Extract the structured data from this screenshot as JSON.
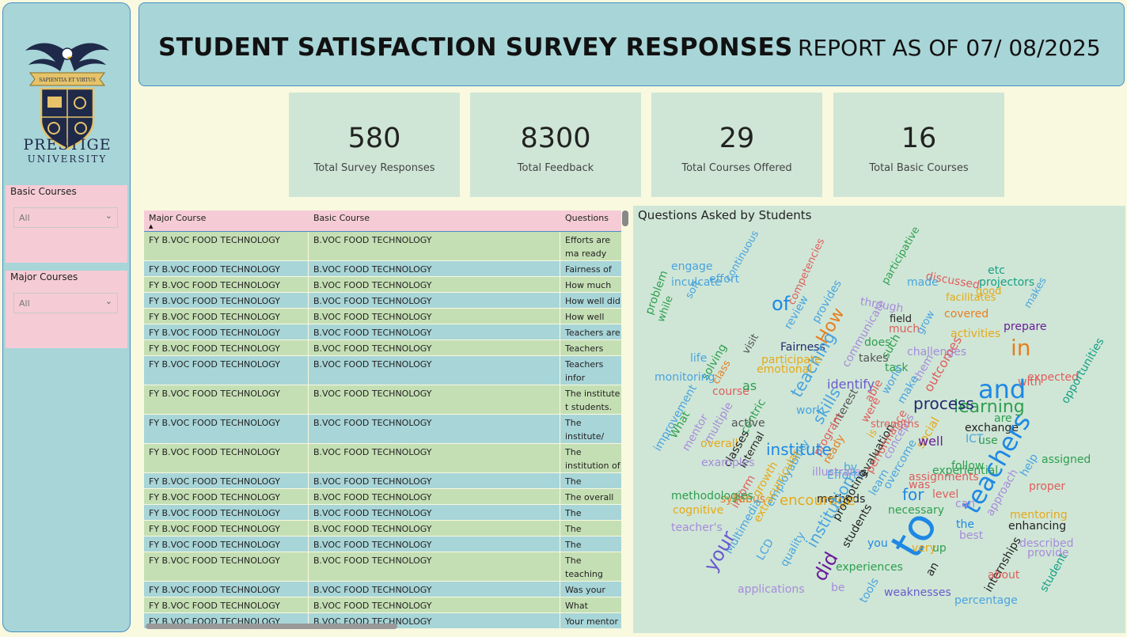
{
  "sidebar": {
    "brand_line1": "PRESTIGE",
    "brand_line2": "UNIVERSITY",
    "logo_motto": "SAPIENTIA ET VIRTUS",
    "slicers": [
      {
        "title": "Basic Courses",
        "value": "All"
      },
      {
        "title": "Major Courses",
        "value": "All"
      }
    ]
  },
  "header": {
    "title": "STUDENT SATISFACTION SURVEY RESPONSES",
    "report": "REPORT AS OF 07/ 08/2025"
  },
  "kpis": [
    {
      "value": "580",
      "label": "Total Survey Responses"
    },
    {
      "value": "8300",
      "label": "Total Feedback"
    },
    {
      "value": "29",
      "label": "Total Courses Offered"
    },
    {
      "value": "16",
      "label": "Total Basic Courses"
    }
  ],
  "table": {
    "columns": [
      "Major Course",
      "Basic Course",
      "Questions"
    ],
    "rows": [
      {
        "major": "FY B.VOC FOOD TECHNOLOGY",
        "basic": "B.VOC FOOD TECHNOLOGY",
        "question": "Efforts are ma ready for the"
      },
      {
        "major": "FY B.VOC FOOD TECHNOLOGY",
        "basic": "B.VOC FOOD TECHNOLOGY",
        "question": "Fairness of the"
      },
      {
        "major": "FY B.VOC FOOD TECHNOLOGY",
        "basic": "B.VOC FOOD TECHNOLOGY",
        "question": "How much of"
      },
      {
        "major": "FY B.VOC FOOD TECHNOLOGY",
        "basic": "B.VOC FOOD TECHNOLOGY",
        "question": "How well did"
      },
      {
        "major": "FY B.VOC FOOD TECHNOLOGY",
        "basic": "B.VOC FOOD TECHNOLOGY",
        "question": "How well were"
      },
      {
        "major": "FY B.VOC FOOD TECHNOLOGY",
        "basic": "B.VOC FOOD TECHNOLOGY",
        "question": "Teachers are a"
      },
      {
        "major": "FY B.VOC FOOD TECHNOLOGY",
        "basic": "B.VOC FOOD TECHNOLOGY",
        "question": "Teachers enco"
      },
      {
        "major": "FY B.VOC FOOD TECHNOLOGY",
        "basic": "B.VOC FOOD TECHNOLOGY",
        "question": "Teachers infor outcomes."
      },
      {
        "major": "FY B.VOC FOOD TECHNOLOGY",
        "basic": "B.VOC FOOD TECHNOLOGY",
        "question": "The institute t students."
      },
      {
        "major": "FY B.VOC FOOD TECHNOLOGY",
        "basic": "B.VOC FOOD TECHNOLOGY",
        "question": "The institute/ problem-solvi"
      },
      {
        "major": "FY B.VOC FOOD TECHNOLOGY",
        "basic": "B.VOC FOOD TECHNOLOGY",
        "question": "The institution of the teachin"
      },
      {
        "major": "FY B.VOC FOOD TECHNOLOGY",
        "basic": "B.VOC FOOD TECHNOLOGY",
        "question": "The institution"
      },
      {
        "major": "FY B.VOC FOOD TECHNOLOGY",
        "basic": "B.VOC FOOD TECHNOLOGY",
        "question": "The overall qu"
      },
      {
        "major": "FY B.VOC FOOD TECHNOLOGY",
        "basic": "B.VOC FOOD TECHNOLOGY",
        "question": "The teacher's"
      },
      {
        "major": "FY B.VOC FOOD TECHNOLOGY",
        "basic": "B.VOC FOOD TECHNOLOGY",
        "question": "The teachers i"
      },
      {
        "major": "FY B.VOC FOOD TECHNOLOGY",
        "basic": "B.VOC FOOD TECHNOLOGY",
        "question": "The teachers i"
      },
      {
        "major": "FY B.VOC FOOD TECHNOLOGY",
        "basic": "B.VOC FOOD TECHNOLOGY",
        "question": "The teaching emotional gro"
      },
      {
        "major": "FY B.VOC FOOD TECHNOLOGY",
        "basic": "B.VOC FOOD TECHNOLOGY",
        "question": "Was your pert"
      },
      {
        "major": "FY B.VOC FOOD TECHNOLOGY",
        "basic": "B.VOC FOOD TECHNOLOGY",
        "question": "What percent"
      },
      {
        "major": "FY B.VOC FOOD TECHNOLOGY",
        "basic": "B.VOC FOOD TECHNOLOGY",
        "question": "Your mentor c"
      }
    ]
  },
  "wordcloud": {
    "title": "Questions Asked by Students",
    "words": [
      {
        "t": "engage",
        "c": "#4aa3df"
      },
      {
        "t": "effort",
        "c": "#4aa3df"
      },
      {
        "t": "continuous",
        "c": "#4aa3df"
      },
      {
        "t": "inculcate",
        "c": "#4aa3df"
      },
      {
        "t": "problem",
        "c": "#2e9e4f"
      },
      {
        "t": "soft",
        "c": "#4aa3df"
      },
      {
        "t": "while",
        "c": "#2e9e4f"
      },
      {
        "t": "of",
        "c": "#1e88e5"
      },
      {
        "t": "review",
        "c": "#4aa3df"
      },
      {
        "t": "competencies",
        "c": "#e05c5c"
      },
      {
        "t": "provides",
        "c": "#4aa3df"
      },
      {
        "t": "How",
        "c": "#e67e22"
      },
      {
        "t": "through",
        "c": "#a78bda"
      },
      {
        "t": "participative",
        "c": "#2e9e4f"
      },
      {
        "t": "discussed",
        "c": "#e05c5c"
      },
      {
        "t": "made",
        "c": "#4aa3df"
      },
      {
        "t": "etc",
        "c": "#16a085"
      },
      {
        "t": "projectors",
        "c": "#16a085"
      },
      {
        "t": "good",
        "c": "#e6a817"
      },
      {
        "t": "facilitates",
        "c": "#e6a817"
      },
      {
        "t": "makes",
        "c": "#4aa3df"
      },
      {
        "t": "covered",
        "c": "#e67e22"
      },
      {
        "t": "prepare",
        "c": "#6a1b9a"
      },
      {
        "t": "activities",
        "c": "#e6a817"
      },
      {
        "t": "in",
        "c": "#e67e22"
      },
      {
        "t": "field",
        "c": "#222"
      },
      {
        "t": "much",
        "c": "#e05c5c"
      },
      {
        "t": "grow",
        "c": "#4aa3df"
      },
      {
        "t": "communicate",
        "c": "#a78bda"
      },
      {
        "t": "does",
        "c": "#2e9e4f"
      },
      {
        "t": "such",
        "c": "#2e9e4f"
      },
      {
        "t": "visit",
        "c": "#555"
      },
      {
        "t": "Fairness",
        "c": "#1f2a6e"
      },
      {
        "t": "teaching",
        "c": "#4aa3df"
      },
      {
        "t": "takes",
        "c": "#555"
      },
      {
        "t": "challenges",
        "c": "#a78bda"
      },
      {
        "t": "participate",
        "c": "#e6a817"
      },
      {
        "t": "emotional",
        "c": "#e6a817"
      },
      {
        "t": "task",
        "c": "#2e9e4f"
      },
      {
        "t": "life",
        "c": "#4aa3df"
      },
      {
        "t": "solving",
        "c": "#2e9e4f"
      },
      {
        "t": "class",
        "c": "#e67e22"
      },
      {
        "t": "monitoring",
        "c": "#4aa3df"
      },
      {
        "t": "course",
        "c": "#e05c5c"
      },
      {
        "t": "identify",
        "c": "#6a5acd"
      },
      {
        "t": "them",
        "c": "#a78bda"
      },
      {
        "t": "outcomes",
        "c": "#e05c5c"
      },
      {
        "t": "expected",
        "c": "#e05c5c"
      },
      {
        "t": "with",
        "c": "#e05c5c"
      },
      {
        "t": "and",
        "c": "#1e88e5"
      },
      {
        "t": "as",
        "c": "#2e9e4f"
      },
      {
        "t": "able",
        "c": "#e05c5c"
      },
      {
        "t": "world",
        "c": "#4aa3df"
      },
      {
        "t": "make",
        "c": "#4aa3df"
      },
      {
        "t": "learning",
        "c": "#2e9e4f"
      },
      {
        "t": "process",
        "c": "#1f2a6e"
      },
      {
        "t": "skills",
        "c": "#4aa3df"
      },
      {
        "t": "work",
        "c": "#4aa3df"
      },
      {
        "t": "centric",
        "c": "#2e9e4f"
      },
      {
        "t": "interest",
        "c": "#555"
      },
      {
        "t": "were",
        "c": "#e05c5c"
      },
      {
        "t": "is",
        "c": "#e6a817"
      },
      {
        "t": "improvement",
        "c": "#4aa3df"
      },
      {
        "t": "What",
        "c": "#2e9e4f"
      },
      {
        "t": "mentor",
        "c": "#a78bda"
      },
      {
        "t": "multiple",
        "c": "#a78bda"
      },
      {
        "t": "active",
        "c": "#555"
      },
      {
        "t": "program",
        "c": "#e05c5c"
      },
      {
        "t": "concepts",
        "c": "#a78bda"
      },
      {
        "t": "social",
        "c": "#e6a817"
      },
      {
        "t": "are",
        "c": "#2e9e4f"
      },
      {
        "t": "opportunities",
        "c": "#16a085"
      },
      {
        "t": "overall",
        "c": "#e6a817"
      },
      {
        "t": "classes",
        "c": "#222"
      },
      {
        "t": "internal",
        "c": "#222"
      },
      {
        "t": "institute",
        "c": "#1e88e5"
      },
      {
        "t": "ready",
        "c": "#e67e22"
      },
      {
        "t": "evaluation",
        "c": "#222"
      },
      {
        "t": "performance",
        "c": "#e05c5c"
      },
      {
        "t": "well",
        "c": "#6a1b9a"
      },
      {
        "t": "exchange",
        "c": "#222"
      },
      {
        "t": "ICT",
        "c": "#4aa3df"
      },
      {
        "t": "use",
        "c": "#2e9e4f"
      },
      {
        "t": "teachers",
        "c": "#1e88e5"
      },
      {
        "t": "help",
        "c": "#4aa3df"
      },
      {
        "t": "assigned",
        "c": "#2e9e4f"
      },
      {
        "t": "examples",
        "c": "#a78bda"
      },
      {
        "t": "by",
        "c": "#4aa3df"
      },
      {
        "t": "Efforts",
        "c": "#4aa3df"
      },
      {
        "t": "illustrate",
        "c": "#a78bda"
      },
      {
        "t": "follow",
        "c": "#2e9e4f"
      },
      {
        "t": "experiential",
        "c": "#2e9e4f"
      },
      {
        "t": "assignments",
        "c": "#e05c5c"
      },
      {
        "t": "proper",
        "c": "#e05c5c"
      },
      {
        "t": "growth",
        "c": "#e6a817"
      },
      {
        "t": "employability",
        "c": "#4aa3df"
      },
      {
        "t": "inform",
        "c": "#e05c5c"
      },
      {
        "t": "methods",
        "c": "#222"
      },
      {
        "t": "learn",
        "c": "#4aa3df"
      },
      {
        "t": "overcome",
        "c": "#4aa3df"
      },
      {
        "t": "was",
        "c": "#e05c5c"
      },
      {
        "t": "level",
        "c": "#e05c5c"
      },
      {
        "t": "for",
        "c": "#1e88e5"
      },
      {
        "t": "encourage",
        "c": "#e6a817"
      },
      {
        "t": "syllabus",
        "c": "#e67e22"
      },
      {
        "t": "methodologies",
        "c": "#2e9e4f"
      },
      {
        "t": "promoting",
        "c": "#222"
      },
      {
        "t": "necessary",
        "c": "#2e9e4f"
      },
      {
        "t": "can",
        "c": "#a78bda"
      },
      {
        "t": "approach",
        "c": "#a78bda"
      },
      {
        "t": "mentoring",
        "c": "#e6a817"
      },
      {
        "t": "cognitive",
        "c": "#e6a817"
      },
      {
        "t": "extracurricular",
        "c": "#e6a817"
      },
      {
        "t": "Multimedia",
        "c": "#4aa3df"
      },
      {
        "t": "teacher's",
        "c": "#a78bda"
      },
      {
        "t": "your",
        "c": "#6a5acd"
      },
      {
        "t": "institution",
        "c": "#4aa3df"
      },
      {
        "t": "students",
        "c": "#222"
      },
      {
        "t": "to",
        "c": "#1e88e5"
      },
      {
        "t": "the",
        "c": "#1e88e5"
      },
      {
        "t": "best",
        "c": "#a78bda"
      },
      {
        "t": "enhancing",
        "c": "#222"
      },
      {
        "t": "described",
        "c": "#a78bda"
      },
      {
        "t": "provide",
        "c": "#a78bda"
      },
      {
        "t": "LCD",
        "c": "#4aa3df"
      },
      {
        "t": "quality",
        "c": "#4aa3df"
      },
      {
        "t": "did",
        "c": "#6a1b9a"
      },
      {
        "t": "you",
        "c": "#1e88e5"
      },
      {
        "t": "very",
        "c": "#e6a817"
      },
      {
        "t": "up",
        "c": "#2e9e4f"
      },
      {
        "t": "internships",
        "c": "#222"
      },
      {
        "t": "experiences",
        "c": "#2e9e4f"
      },
      {
        "t": "student",
        "c": "#16a085"
      },
      {
        "t": "an",
        "c": "#222"
      },
      {
        "t": "about",
        "c": "#e05c5c"
      },
      {
        "t": "be",
        "c": "#a78bda"
      },
      {
        "t": "tools",
        "c": "#4aa3df"
      },
      {
        "t": "applications",
        "c": "#a78bda"
      },
      {
        "t": "weaknesses",
        "c": "#6a5acd"
      },
      {
        "t": "percentage",
        "c": "#4aa3df"
      },
      {
        "t": "strengths",
        "c": "#e05c5c"
      }
    ]
  }
}
